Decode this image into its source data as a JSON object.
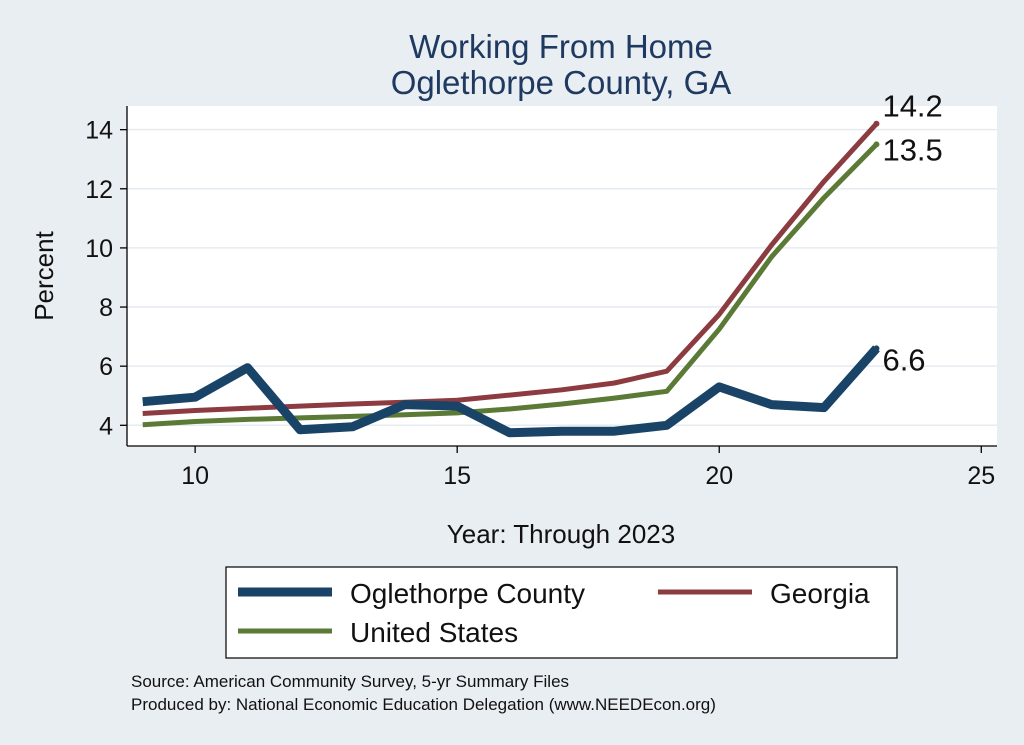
{
  "chart_data": {
    "type": "line",
    "title": [
      "Working From Home",
      "Oglethorpe County, GA"
    ],
    "xlabel": "Year: Through 2023",
    "ylabel": "Percent",
    "xlim": [
      8.7,
      25.3
    ],
    "ylim": [
      3.3,
      14.8
    ],
    "xticks": [
      10,
      15,
      20,
      25
    ],
    "yticks": [
      4,
      6,
      8,
      10,
      12,
      14
    ],
    "grid": "horizontal",
    "x": [
      9,
      10,
      11,
      12,
      13,
      14,
      15,
      16,
      17,
      18,
      19,
      20,
      21,
      22,
      23
    ],
    "series": [
      {
        "name": "Oglethorpe County",
        "color": "#1a4368",
        "values": [
          4.8,
          4.95,
          5.95,
          3.85,
          3.95,
          4.7,
          4.65,
          3.75,
          3.8,
          3.8,
          4.0,
          5.3,
          4.7,
          4.6,
          6.6
        ],
        "end_label": "6.6"
      },
      {
        "name": "Georgia",
        "color": "#8c3b40",
        "values": [
          4.4,
          4.5,
          4.58,
          4.65,
          4.72,
          4.78,
          4.85,
          5.02,
          5.2,
          5.43,
          5.83,
          7.75,
          10.1,
          12.25,
          14.2
        ],
        "end_label": "14.2"
      },
      {
        "name": "United States",
        "color": "#5a7a35",
        "values": [
          4.02,
          4.13,
          4.2,
          4.25,
          4.3,
          4.36,
          4.42,
          4.55,
          4.72,
          4.92,
          5.15,
          7.25,
          9.7,
          11.7,
          13.5
        ],
        "end_label": "13.5"
      }
    ],
    "legend_position": "bottom",
    "source_lines": [
      "Source: American Community Survey, 5-yr Summary Files",
      "Produced by: National Economic Education Delegation (www.NEEDEcon.org)"
    ]
  }
}
